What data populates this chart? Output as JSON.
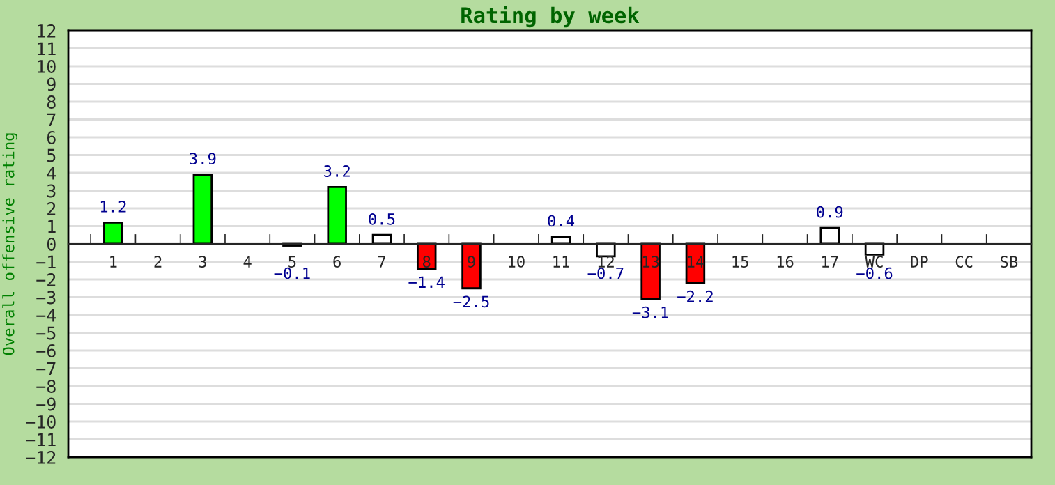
{
  "chart_data": {
    "type": "bar",
    "title": "Rating by week",
    "ylabel": "Overall offensive rating",
    "categories": [
      "1",
      "2",
      "3",
      "4",
      "5",
      "6",
      "7",
      "8",
      "9",
      "10",
      "11",
      "12",
      "13",
      "14",
      "15",
      "16",
      "17",
      "WC",
      "DP",
      "CC",
      "SB"
    ],
    "values": [
      1.2,
      null,
      3.9,
      null,
      -0.1,
      3.2,
      0.5,
      -1.4,
      -2.5,
      null,
      0.4,
      -0.7,
      -3.1,
      -2.2,
      null,
      null,
      0.9,
      -0.6,
      null,
      null,
      null
    ],
    "colors": [
      "#00ff00",
      null,
      "#00ff00",
      null,
      "#ffffff",
      "#00ff00",
      "#ffffff",
      "#ff0000",
      "#ff0000",
      null,
      "#ffffff",
      "#ffffff",
      "#ff0000",
      "#ff0000",
      null,
      null,
      "#ffffff",
      "#ffffff",
      null,
      null,
      null
    ],
    "ylim": [
      -12,
      12
    ],
    "yticks": [
      -12,
      -11,
      -10,
      -9,
      -8,
      -7,
      -6,
      -5,
      -4,
      -3,
      -2,
      -1,
      0,
      1,
      2,
      3,
      4,
      5,
      6,
      7,
      8,
      9,
      10,
      11,
      12
    ],
    "grid": "y",
    "data_labels": true
  }
}
